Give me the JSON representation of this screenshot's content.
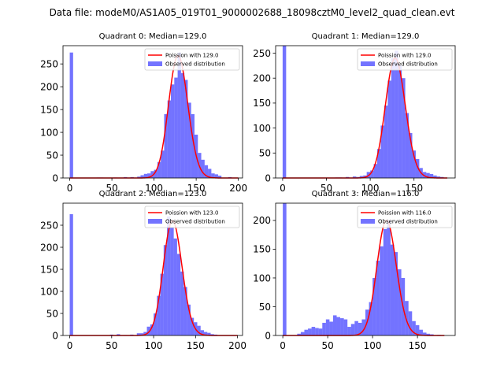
{
  "figure": {
    "suptitle": "Data file: modeM0/AS1A05_019T01_9000002688_18098cztM0_level2_quad_clean.evt"
  },
  "colors": {
    "hist_fill": "#0000ff",
    "hist_alpha": 0.55,
    "poisson_line": "#ff0000",
    "axis": "#000000"
  },
  "chart_data": [
    {
      "type": "bar",
      "title": "Quadrant 0: Median=129.0",
      "xlim": [
        -8,
        205
      ],
      "ylim": [
        0,
        290
      ],
      "xticks": [
        0,
        50,
        100,
        150,
        200
      ],
      "xtick_labels": [
        "0",
        "50",
        "100",
        "150",
        "200"
      ],
      "yticks": [
        0,
        50,
        100,
        150,
        200,
        250
      ],
      "ytick_labels": [
        "0",
        "50",
        "100",
        "150",
        "200",
        "250"
      ],
      "bin_width": 4,
      "bins": [
        {
          "x": 0,
          "count": 275
        },
        {
          "x": 32,
          "count": 1
        },
        {
          "x": 36,
          "count": 1
        },
        {
          "x": 52,
          "count": 1
        },
        {
          "x": 64,
          "count": 2
        },
        {
          "x": 72,
          "count": 2
        },
        {
          "x": 80,
          "count": 3
        },
        {
          "x": 84,
          "count": 6
        },
        {
          "x": 88,
          "count": 9
        },
        {
          "x": 92,
          "count": 10
        },
        {
          "x": 96,
          "count": 15
        },
        {
          "x": 100,
          "count": 18
        },
        {
          "x": 104,
          "count": 35
        },
        {
          "x": 108,
          "count": 60
        },
        {
          "x": 112,
          "count": 140
        },
        {
          "x": 116,
          "count": 170
        },
        {
          "x": 120,
          "count": 205
        },
        {
          "x": 124,
          "count": 220
        },
        {
          "x": 128,
          "count": 275
        },
        {
          "x": 132,
          "count": 230
        },
        {
          "x": 136,
          "count": 215
        },
        {
          "x": 140,
          "count": 165
        },
        {
          "x": 144,
          "count": 140
        },
        {
          "x": 148,
          "count": 95
        },
        {
          "x": 152,
          "count": 55
        },
        {
          "x": 156,
          "count": 40
        },
        {
          "x": 160,
          "count": 28
        },
        {
          "x": 164,
          "count": 20
        },
        {
          "x": 168,
          "count": 10
        },
        {
          "x": 172,
          "count": 8
        },
        {
          "x": 176,
          "count": 5
        },
        {
          "x": 188,
          "count": 2
        }
      ],
      "poisson": {
        "lambda": 129.0,
        "peak": 268,
        "x_range": [
          0,
          200
        ]
      },
      "legend": {
        "position": "upper right",
        "entries": [
          "Poission with 129.0",
          "Observed distribution"
        ]
      }
    },
    {
      "type": "bar",
      "title": "Quadrant 1: Median=129.0",
      "xlim": [
        -8,
        197
      ],
      "ylim": [
        0,
        265
      ],
      "xticks": [
        0,
        50,
        100,
        150
      ],
      "xtick_labels": [
        "0",
        "50",
        "100",
        "150"
      ],
      "yticks": [
        0,
        50,
        100,
        150,
        200,
        250
      ],
      "ytick_labels": [
        "0",
        "50",
        "100",
        "150",
        "200",
        "250"
      ],
      "bin_width": 4,
      "bins": [
        {
          "x": 0,
          "count": 265
        },
        {
          "x": 60,
          "count": 1
        },
        {
          "x": 64,
          "count": 1
        },
        {
          "x": 72,
          "count": 2
        },
        {
          "x": 80,
          "count": 3
        },
        {
          "x": 84,
          "count": 2
        },
        {
          "x": 88,
          "count": 4
        },
        {
          "x": 92,
          "count": 5
        },
        {
          "x": 96,
          "count": 12
        },
        {
          "x": 100,
          "count": 15
        },
        {
          "x": 104,
          "count": 28
        },
        {
          "x": 108,
          "count": 58
        },
        {
          "x": 112,
          "count": 105
        },
        {
          "x": 116,
          "count": 145
        },
        {
          "x": 120,
          "count": 195
        },
        {
          "x": 124,
          "count": 240
        },
        {
          "x": 128,
          "count": 255
        },
        {
          "x": 132,
          "count": 225
        },
        {
          "x": 136,
          "count": 200
        },
        {
          "x": 140,
          "count": 130
        },
        {
          "x": 144,
          "count": 90
        },
        {
          "x": 148,
          "count": 55
        },
        {
          "x": 152,
          "count": 38
        },
        {
          "x": 156,
          "count": 20
        },
        {
          "x": 160,
          "count": 12
        },
        {
          "x": 164,
          "count": 10
        },
        {
          "x": 168,
          "count": 8
        },
        {
          "x": 172,
          "count": 5
        },
        {
          "x": 176,
          "count": 3
        },
        {
          "x": 180,
          "count": 2
        }
      ],
      "poisson": {
        "lambda": 129.0,
        "peak": 240,
        "x_range": [
          0,
          188
        ]
      },
      "legend": {
        "position": "upper right",
        "entries": [
          "Poission with 129.0",
          "Observed distribution"
        ]
      }
    },
    {
      "type": "bar",
      "title": "Quadrant 2: Median=123.0",
      "xlim": [
        -8,
        206
      ],
      "ylim": [
        0,
        300
      ],
      "xticks": [
        0,
        50,
        100,
        150,
        200
      ],
      "xtick_labels": [
        "0",
        "50",
        "100",
        "150",
        "200"
      ],
      "yticks": [
        0,
        50,
        100,
        150,
        200,
        250
      ],
      "ytick_labels": [
        "0",
        "50",
        "100",
        "150",
        "200",
        "250"
      ],
      "bin_width": 4,
      "bins": [
        {
          "x": 0,
          "count": 275
        },
        {
          "x": 48,
          "count": 2
        },
        {
          "x": 56,
          "count": 3
        },
        {
          "x": 64,
          "count": 1
        },
        {
          "x": 72,
          "count": 2
        },
        {
          "x": 80,
          "count": 5
        },
        {
          "x": 84,
          "count": 5
        },
        {
          "x": 88,
          "count": 8
        },
        {
          "x": 92,
          "count": 20
        },
        {
          "x": 96,
          "count": 25
        },
        {
          "x": 100,
          "count": 50
        },
        {
          "x": 104,
          "count": 90
        },
        {
          "x": 108,
          "count": 140
        },
        {
          "x": 112,
          "count": 205
        },
        {
          "x": 116,
          "count": 270
        },
        {
          "x": 120,
          "count": 245
        },
        {
          "x": 124,
          "count": 220
        },
        {
          "x": 128,
          "count": 185
        },
        {
          "x": 132,
          "count": 145
        },
        {
          "x": 136,
          "count": 110
        },
        {
          "x": 140,
          "count": 70
        },
        {
          "x": 144,
          "count": 40
        },
        {
          "x": 148,
          "count": 30
        },
        {
          "x": 152,
          "count": 22
        },
        {
          "x": 156,
          "count": 12
        },
        {
          "x": 160,
          "count": 8
        },
        {
          "x": 164,
          "count": 6
        },
        {
          "x": 168,
          "count": 3
        },
        {
          "x": 172,
          "count": 2
        },
        {
          "x": 192,
          "count": 1
        }
      ],
      "poisson": {
        "lambda": 123.0,
        "peak": 260,
        "x_range": [
          0,
          200
        ]
      },
      "legend": {
        "position": "upper right",
        "entries": [
          "Poission with 123.0",
          "Observed distribution"
        ]
      }
    },
    {
      "type": "bar",
      "title": "Quadrant 3: Median=116.0",
      "xlim": [
        -8,
        192
      ],
      "ylim": [
        0,
        230
      ],
      "xticks": [
        0,
        50,
        100,
        150
      ],
      "xtick_labels": [
        "0",
        "50",
        "100",
        "150"
      ],
      "yticks": [
        0,
        50,
        100,
        150,
        200
      ],
      "ytick_labels": [
        "0",
        "50",
        "100",
        "150",
        "200"
      ],
      "bin_width": 4,
      "bins": [
        {
          "x": 0,
          "count": 230
        },
        {
          "x": 16,
          "count": 3
        },
        {
          "x": 20,
          "count": 6
        },
        {
          "x": 24,
          "count": 10
        },
        {
          "x": 28,
          "count": 12
        },
        {
          "x": 32,
          "count": 15
        },
        {
          "x": 36,
          "count": 13
        },
        {
          "x": 40,
          "count": 12
        },
        {
          "x": 44,
          "count": 22
        },
        {
          "x": 48,
          "count": 28
        },
        {
          "x": 52,
          "count": 24
        },
        {
          "x": 56,
          "count": 35
        },
        {
          "x": 60,
          "count": 32
        },
        {
          "x": 64,
          "count": 30
        },
        {
          "x": 68,
          "count": 28
        },
        {
          "x": 72,
          "count": 15
        },
        {
          "x": 76,
          "count": 20
        },
        {
          "x": 80,
          "count": 25
        },
        {
          "x": 84,
          "count": 22
        },
        {
          "x": 88,
          "count": 28
        },
        {
          "x": 92,
          "count": 45
        },
        {
          "x": 96,
          "count": 58
        },
        {
          "x": 100,
          "count": 100
        },
        {
          "x": 104,
          "count": 130
        },
        {
          "x": 108,
          "count": 155
        },
        {
          "x": 112,
          "count": 185
        },
        {
          "x": 116,
          "count": 200
        },
        {
          "x": 120,
          "count": 158
        },
        {
          "x": 124,
          "count": 145
        },
        {
          "x": 128,
          "count": 115
        },
        {
          "x": 132,
          "count": 100
        },
        {
          "x": 136,
          "count": 60
        },
        {
          "x": 140,
          "count": 42
        },
        {
          "x": 144,
          "count": 25
        },
        {
          "x": 148,
          "count": 18
        },
        {
          "x": 152,
          "count": 10
        },
        {
          "x": 156,
          "count": 5
        },
        {
          "x": 160,
          "count": 3
        },
        {
          "x": 164,
          "count": 2
        },
        {
          "x": 172,
          "count": 1
        }
      ],
      "poisson": {
        "lambda": 116.0,
        "peak": 200,
        "x_range": [
          0,
          180
        ]
      },
      "legend": {
        "position": "upper right",
        "entries": [
          "Poission with 116.0",
          "Observed distribution"
        ]
      }
    }
  ]
}
